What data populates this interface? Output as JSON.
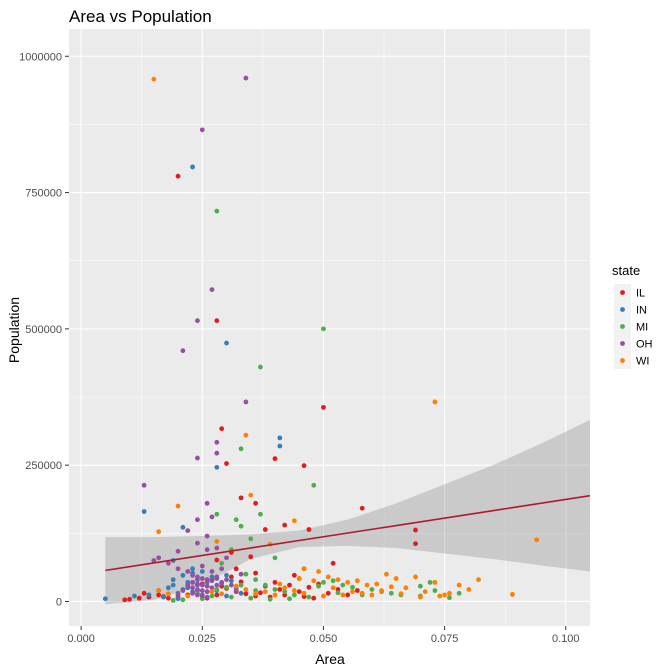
{
  "chart_data": {
    "type": "scatter",
    "title": "Area vs Population",
    "xlabel": "Area",
    "ylabel": "Population",
    "xlim": [
      -0.0025,
      0.105
    ],
    "ylim": [
      -45000,
      1050000
    ],
    "x_ticks": [
      0.0,
      0.025,
      0.05,
      0.075,
      0.1
    ],
    "x_tick_labels": [
      "0.000",
      "0.025",
      "0.050",
      "0.075",
      "0.100"
    ],
    "y_ticks": [
      0,
      250000,
      500000,
      750000,
      1000000
    ],
    "y_tick_labels": [
      "0",
      "250000",
      "500000",
      "750000",
      "1000000"
    ],
    "grid": true,
    "background": "#ebebeb",
    "legend": {
      "title": "state",
      "placement": "right",
      "entries": [
        {
          "label": "IL",
          "color": "#e41a1c"
        },
        {
          "label": "IN",
          "color": "#377eb8"
        },
        {
          "label": "MI",
          "color": "#4daf4a"
        },
        {
          "label": "OH",
          "color": "#984ea3"
        },
        {
          "label": "WI",
          "color": "#ff7f00"
        }
      ]
    },
    "trend_line": {
      "color": "#b2182b",
      "points": [
        [
          0.005,
          57000
        ],
        [
          0.105,
          194000
        ]
      ],
      "confidence_band": {
        "color": "#999999",
        "x": [
          0.005,
          0.015,
          0.025,
          0.035,
          0.045,
          0.055,
          0.065,
          0.075,
          0.085,
          0.095,
          0.105
        ],
        "upper": [
          118000,
          118000,
          120000,
          123000,
          130000,
          150000,
          180000,
          215000,
          250000,
          290000,
          333000
        ],
        "lower": [
          -5000,
          3000,
          30000,
          78000,
          100000,
          102000,
          98000,
          88000,
          78000,
          66000,
          55000
        ]
      }
    },
    "series": [
      {
        "name": "IL",
        "color": "#e41a1c",
        "points": [
          [
            0.02,
            780000
          ],
          [
            0.028,
            515000
          ],
          [
            0.05,
            356000
          ],
          [
            0.029,
            317000
          ],
          [
            0.03,
            253000
          ],
          [
            0.04,
            262000
          ],
          [
            0.046,
            249000
          ],
          [
            0.033,
            190000
          ],
          [
            0.036,
            180000
          ],
          [
            0.058,
            171000
          ],
          [
            0.042,
            140000
          ],
          [
            0.038,
            132000
          ],
          [
            0.047,
            132000
          ],
          [
            0.069,
            131000
          ],
          [
            0.069,
            106000
          ],
          [
            0.031,
            90000
          ],
          [
            0.035,
            82000
          ],
          [
            0.028,
            76000
          ],
          [
            0.032,
            60000
          ],
          [
            0.036,
            52000
          ],
          [
            0.052,
            70000
          ],
          [
            0.044,
            48000
          ],
          [
            0.04,
            35000
          ],
          [
            0.038,
            28000
          ],
          [
            0.041,
            22000
          ],
          [
            0.043,
            30000
          ],
          [
            0.045,
            18000
          ],
          [
            0.047,
            26000
          ],
          [
            0.049,
            32000
          ],
          [
            0.051,
            15000
          ],
          [
            0.053,
            22000
          ],
          [
            0.055,
            12000
          ],
          [
            0.057,
            20000
          ],
          [
            0.03,
            24000
          ],
          [
            0.032,
            18000
          ],
          [
            0.034,
            14000
          ],
          [
            0.036,
            10000
          ],
          [
            0.024,
            20000
          ],
          [
            0.022,
            12000
          ],
          [
            0.02,
            8000
          ],
          [
            0.018,
            6000
          ],
          [
            0.016,
            12000
          ],
          [
            0.014,
            8000
          ],
          [
            0.012,
            6000
          ],
          [
            0.01,
            4000
          ],
          [
            0.009,
            3000
          ],
          [
            0.013,
            15000
          ],
          [
            0.017,
            9000
          ],
          [
            0.026,
            6000
          ],
          [
            0.028,
            12000
          ],
          [
            0.037,
            16000
          ],
          [
            0.039,
            8000
          ],
          [
            0.042,
            12000
          ],
          [
            0.046,
            9000
          ],
          [
            0.048,
            6000
          ],
          [
            0.025,
            32000
          ],
          [
            0.027,
            40000
          ],
          [
            0.029,
            28000
          ],
          [
            0.031,
            45000
          ],
          [
            0.033,
            36000
          ]
        ]
      },
      {
        "name": "IN",
        "color": "#377eb8",
        "points": [
          [
            0.023,
            797000
          ],
          [
            0.03,
            474000
          ],
          [
            0.041,
            300000
          ],
          [
            0.028,
            246000
          ],
          [
            0.041,
            285000
          ],
          [
            0.013,
            165000
          ],
          [
            0.021,
            136000
          ],
          [
            0.019,
            75000
          ],
          [
            0.023,
            60000
          ],
          [
            0.025,
            55000
          ],
          [
            0.016,
            20000
          ],
          [
            0.018,
            25000
          ],
          [
            0.019,
            30000
          ],
          [
            0.02,
            15000
          ],
          [
            0.021,
            22000
          ],
          [
            0.022,
            35000
          ],
          [
            0.023,
            18000
          ],
          [
            0.024,
            40000
          ],
          [
            0.025,
            12000
          ],
          [
            0.026,
            28000
          ],
          [
            0.027,
            45000
          ],
          [
            0.028,
            20000
          ],
          [
            0.029,
            33000
          ],
          [
            0.03,
            10000
          ],
          [
            0.031,
            38000
          ],
          [
            0.032,
            25000
          ],
          [
            0.033,
            15000
          ],
          [
            0.005,
            5000
          ],
          [
            0.011,
            10000
          ],
          [
            0.014,
            12000
          ],
          [
            0.017,
            8000
          ],
          [
            0.02,
            5000
          ],
          [
            0.022,
            25000
          ],
          [
            0.024,
            30000
          ],
          [
            0.026,
            35000
          ],
          [
            0.028,
            42000
          ],
          [
            0.03,
            48000
          ],
          [
            0.019,
            40000
          ],
          [
            0.021,
            48000
          ],
          [
            0.023,
            52000
          ]
        ]
      },
      {
        "name": "MI",
        "color": "#4daf4a",
        "points": [
          [
            0.028,
            716000
          ],
          [
            0.05,
            500000
          ],
          [
            0.037,
            430000
          ],
          [
            0.033,
            280000
          ],
          [
            0.048,
            213000
          ],
          [
            0.028,
            160000
          ],
          [
            0.033,
            138000
          ],
          [
            0.037,
            160000
          ],
          [
            0.032,
            150000
          ],
          [
            0.035,
            115000
          ],
          [
            0.031,
            95000
          ],
          [
            0.04,
            80000
          ],
          [
            0.046,
            60000
          ],
          [
            0.029,
            70000
          ],
          [
            0.034,
            50000
          ],
          [
            0.036,
            40000
          ],
          [
            0.038,
            30000
          ],
          [
            0.04,
            22000
          ],
          [
            0.042,
            18000
          ],
          [
            0.044,
            12000
          ],
          [
            0.05,
            35000
          ],
          [
            0.052,
            38000
          ],
          [
            0.054,
            30000
          ],
          [
            0.056,
            26000
          ],
          [
            0.06,
            22000
          ],
          [
            0.062,
            18000
          ],
          [
            0.064,
            15000
          ],
          [
            0.066,
            12000
          ],
          [
            0.07,
            10000
          ],
          [
            0.073,
            20000
          ],
          [
            0.076,
            7000
          ],
          [
            0.078,
            15000
          ],
          [
            0.07,
            28000
          ],
          [
            0.072,
            35000
          ],
          [
            0.058,
            12000
          ],
          [
            0.047,
            8000
          ],
          [
            0.043,
            5000
          ],
          [
            0.039,
            4000
          ],
          [
            0.035,
            6000
          ],
          [
            0.031,
            8000
          ],
          [
            0.027,
            10000
          ],
          [
            0.025,
            5000
          ],
          [
            0.021,
            3000
          ],
          [
            0.019,
            2000
          ],
          [
            0.024,
            15000
          ],
          [
            0.026,
            18000
          ],
          [
            0.028,
            22000
          ],
          [
            0.03,
            26000
          ],
          [
            0.033,
            30000
          ],
          [
            0.036,
            20000
          ],
          [
            0.045,
            42000
          ],
          [
            0.049,
            28000
          ],
          [
            0.053,
            16000
          ]
        ]
      },
      {
        "name": "OH",
        "color": "#984ea3",
        "points": [
          [
            0.034,
            960000
          ],
          [
            0.025,
            865000
          ],
          [
            0.027,
            572000
          ],
          [
            0.024,
            515000
          ],
          [
            0.021,
            460000
          ],
          [
            0.034,
            366000
          ],
          [
            0.028,
            292000
          ],
          [
            0.028,
            272000
          ],
          [
            0.024,
            263000
          ],
          [
            0.013,
            213000
          ],
          [
            0.026,
            180000
          ],
          [
            0.024,
            150000
          ],
          [
            0.027,
            155000
          ],
          [
            0.022,
            130000
          ],
          [
            0.026,
            120000
          ],
          [
            0.024,
            107000
          ],
          [
            0.02,
            92000
          ],
          [
            0.026,
            95000
          ],
          [
            0.028,
            98000
          ],
          [
            0.03,
            80000
          ],
          [
            0.016,
            80000
          ],
          [
            0.018,
            70000
          ],
          [
            0.02,
            60000
          ],
          [
            0.022,
            55000
          ],
          [
            0.023,
            48000
          ],
          [
            0.024,
            45000
          ],
          [
            0.025,
            42000
          ],
          [
            0.026,
            40000
          ],
          [
            0.027,
            38000
          ],
          [
            0.023,
            35000
          ],
          [
            0.024,
            32000
          ],
          [
            0.025,
            30000
          ],
          [
            0.026,
            28000
          ],
          [
            0.023,
            25000
          ],
          [
            0.024,
            22000
          ],
          [
            0.025,
            20000
          ],
          [
            0.026,
            18000
          ],
          [
            0.023,
            15000
          ],
          [
            0.024,
            12000
          ],
          [
            0.025,
            10000
          ],
          [
            0.026,
            8000
          ],
          [
            0.027,
            25000
          ],
          [
            0.028,
            30000
          ],
          [
            0.029,
            35000
          ],
          [
            0.03,
            40000
          ],
          [
            0.031,
            30000
          ],
          [
            0.032,
            20000
          ],
          [
            0.033,
            50000
          ],
          [
            0.029,
            60000
          ],
          [
            0.022,
            30000
          ],
          [
            0.021,
            20000
          ],
          [
            0.02,
            12000
          ],
          [
            0.028,
            45000
          ],
          [
            0.027,
            55000
          ],
          [
            0.025,
            65000
          ],
          [
            0.015,
            75000
          ]
        ]
      },
      {
        "name": "WI",
        "color": "#ff7f00",
        "points": [
          [
            0.015,
            958000
          ],
          [
            0.073,
            366000
          ],
          [
            0.034,
            305000
          ],
          [
            0.035,
            195000
          ],
          [
            0.02,
            175000
          ],
          [
            0.044,
            148000
          ],
          [
            0.016,
            128000
          ],
          [
            0.094,
            113000
          ],
          [
            0.028,
            110000
          ],
          [
            0.039,
            105000
          ],
          [
            0.046,
            60000
          ],
          [
            0.049,
            55000
          ],
          [
            0.051,
            45000
          ],
          [
            0.053,
            40000
          ],
          [
            0.055,
            35000
          ],
          [
            0.057,
            38000
          ],
          [
            0.059,
            30000
          ],
          [
            0.061,
            32000
          ],
          [
            0.063,
            50000
          ],
          [
            0.065,
            42000
          ],
          [
            0.067,
            25000
          ],
          [
            0.069,
            45000
          ],
          [
            0.071,
            18000
          ],
          [
            0.073,
            35000
          ],
          [
            0.075,
            12000
          ],
          [
            0.078,
            30000
          ],
          [
            0.082,
            40000
          ],
          [
            0.089,
            13000
          ],
          [
            0.08,
            22000
          ],
          [
            0.076,
            15000
          ],
          [
            0.062,
            20000
          ],
          [
            0.058,
            15000
          ],
          [
            0.054,
            12000
          ],
          [
            0.05,
            10000
          ],
          [
            0.046,
            15000
          ],
          [
            0.044,
            20000
          ],
          [
            0.042,
            25000
          ],
          [
            0.04,
            12000
          ],
          [
            0.038,
            18000
          ],
          [
            0.036,
            14000
          ],
          [
            0.034,
            22000
          ],
          [
            0.032,
            28000
          ],
          [
            0.048,
            38000
          ],
          [
            0.045,
            42000
          ],
          [
            0.041,
            32000
          ],
          [
            0.029,
            14000
          ],
          [
            0.027,
            18000
          ],
          [
            0.022,
            10000
          ],
          [
            0.018,
            14000
          ],
          [
            0.016,
            20000
          ],
          [
            0.064,
            27000
          ],
          [
            0.06,
            12000
          ],
          [
            0.056,
            18000
          ],
          [
            0.052,
            25000
          ],
          [
            0.07,
            8000
          ],
          [
            0.074,
            10000
          ],
          [
            0.066,
            14000
          ]
        ]
      }
    ]
  }
}
